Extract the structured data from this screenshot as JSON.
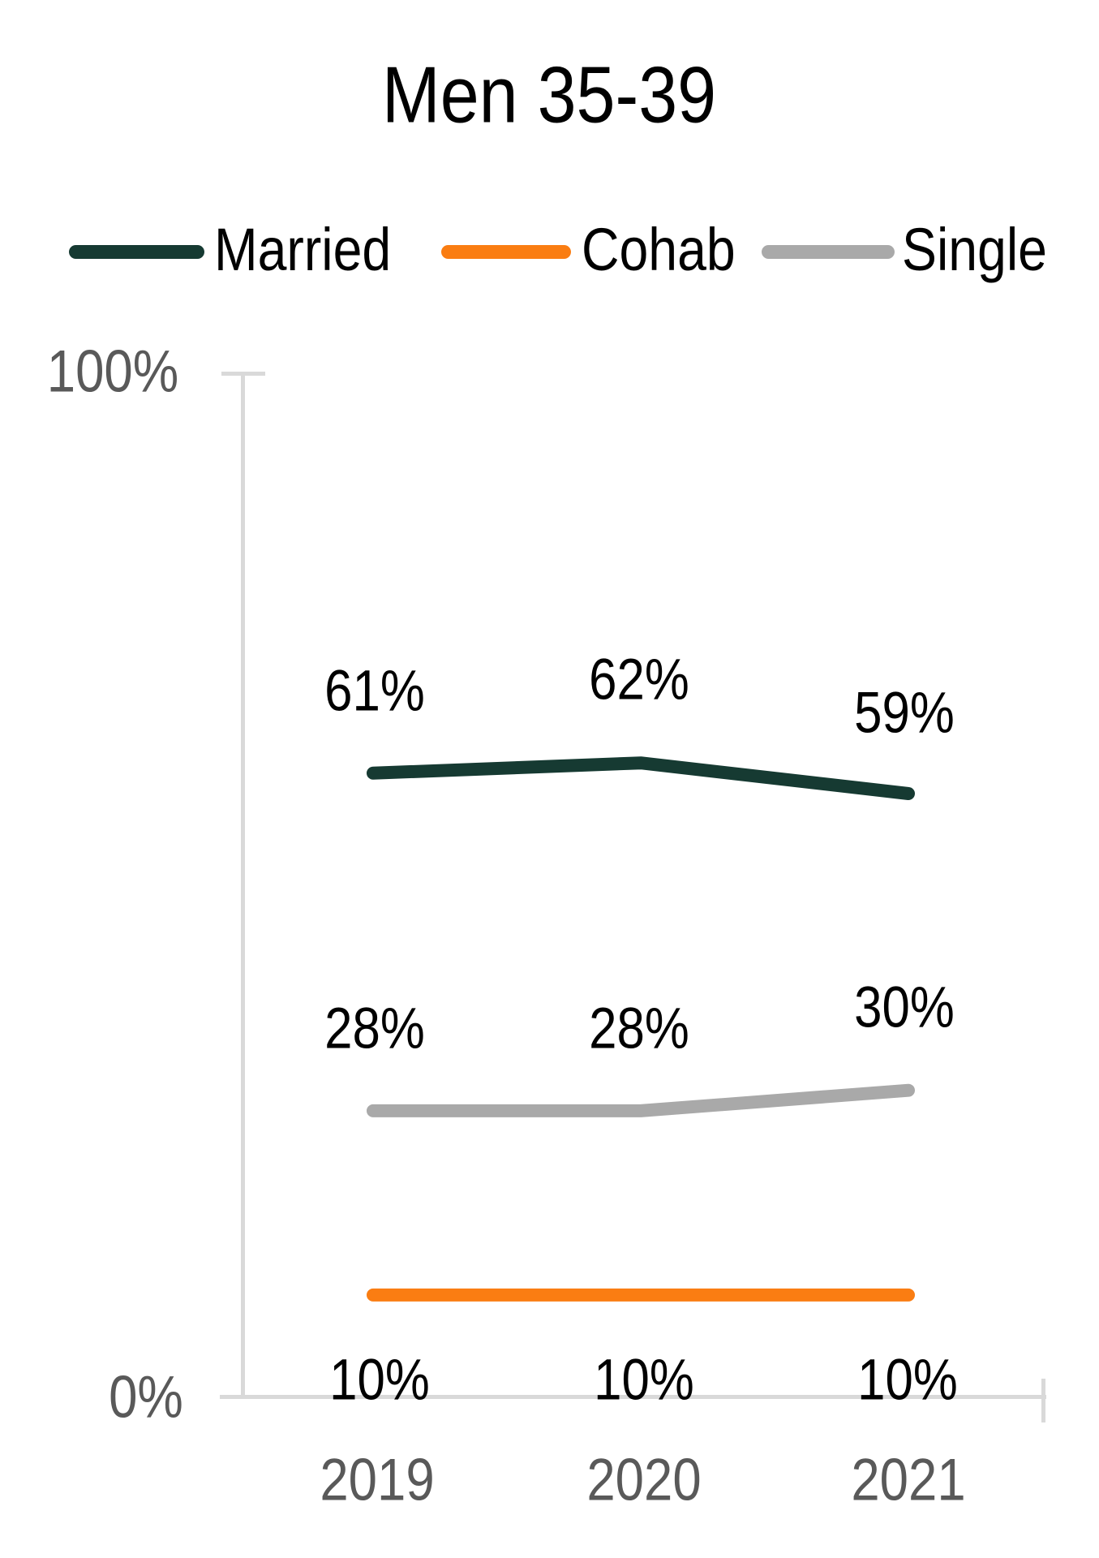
{
  "chart_data": {
    "type": "line",
    "title": "Men 35-39",
    "x": [
      "2019",
      "2020",
      "2021"
    ],
    "series": [
      {
        "name": "Married",
        "values": [
          61,
          62,
          59
        ],
        "labels": [
          "61%",
          "62%",
          "59%"
        ],
        "color": "#163a32"
      },
      {
        "name": "Cohab",
        "values": [
          10,
          10,
          10
        ],
        "labels": [
          "10%",
          "10%",
          "10%"
        ],
        "color": "#fa7d12"
      },
      {
        "name": "Single",
        "values": [
          28,
          28,
          30
        ],
        "labels": [
          "28%",
          "28%",
          "30%"
        ],
        "color": "#a9a9a9"
      }
    ],
    "xlabel": "",
    "ylabel": "",
    "ylim": [
      0,
      100
    ],
    "ytick_labels": [
      "100%",
      "0%"
    ],
    "legend": [
      "Married",
      "Cohab",
      "Single"
    ],
    "legend_position": "top",
    "grid": false,
    "colors": {
      "background": "#ffffff",
      "axis": "#d9d9d9",
      "tick_label": "#595959",
      "data_label": "#000000"
    }
  }
}
